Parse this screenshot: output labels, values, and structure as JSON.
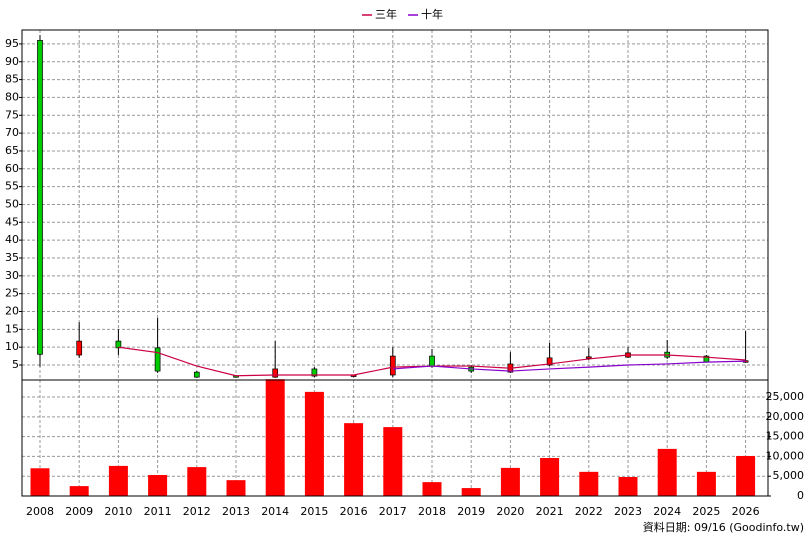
{
  "chart_data": [
    {
      "type": "candlestick",
      "legend": "top",
      "up_color": "#ff0000",
      "down_color": "#00cc00",
      "open": [
        96,
        7.8,
        11.7,
        9.8,
        3,
        2,
        1.6,
        3.9,
        1.9,
        2.2,
        7.5,
        4.4,
        3,
        5,
        7,
        7.2,
        8.6,
        7.5,
        5.8
      ],
      "high": [
        97.5,
        17,
        15,
        18.2,
        3.3,
        2.2,
        11.7,
        4.4,
        2.2,
        10,
        9.5,
        5,
        8.6,
        11.2,
        9.8,
        10,
        12,
        7.8,
        14.5
      ],
      "low": [
        4.5,
        7,
        7.8,
        2.8,
        1.4,
        1.7,
        1.4,
        1.6,
        1.6,
        1.6,
        4.2,
        2.8,
        2.8,
        4.7,
        6.4,
        7,
        6.7,
        5.8,
        5.6
      ],
      "close": [
        8,
        11.7,
        9.8,
        3.3,
        1.6,
        1.9,
        3.9,
        1.9,
        2.2,
        7.5,
        4.7,
        3.3,
        5.3,
        7,
        7.3,
        8.4,
        7.2,
        5.8,
        6.2
      ],
      "series": [
        {
          "name": "三年",
          "color": "#cc0044",
          "values": [
            null,
            null,
            10,
            8.5,
            4.7,
            2,
            2.2,
            2.2,
            2.2,
            4.4,
            4.7,
            4.7,
            4.1,
            5.3,
            6.7,
            7.8,
            7.8,
            7.2,
            6.4
          ]
        },
        {
          "name": "十年",
          "color": "#8800cc",
          "values": [
            null,
            null,
            null,
            null,
            null,
            null,
            null,
            null,
            null,
            3.9,
            4.7,
            3.9,
            3.3,
            3.9,
            4.4,
            5,
            5.3,
            5.8,
            6.1
          ]
        }
      ],
      "ylim": [
        0.8,
        98.9
      ],
      "yticks": [
        5,
        10,
        15,
        20,
        25,
        30,
        35,
        40,
        45,
        50,
        55,
        60,
        65,
        70,
        75,
        80,
        85,
        90,
        95
      ],
      "grid": true
    },
    {
      "type": "bar",
      "color": "#ff0000",
      "categories": [
        "2008",
        "2009",
        "2010",
        "2011",
        "2012",
        "2013",
        "2014",
        "2015",
        "2016",
        "2017",
        "2018",
        "2019",
        "2020",
        "2021",
        "2022",
        "2023",
        "2024",
        "2025",
        "2026"
      ],
      "values": [
        7000,
        2500,
        7600,
        5300,
        7300,
        4000,
        29500,
        26300,
        18400,
        17400,
        3500,
        2000,
        7100,
        9600,
        6100,
        4800,
        11900,
        6100,
        10100
      ],
      "ylim": [
        0,
        29300
      ],
      "yticks": [
        0,
        {
          "value": 5000,
          "label": "5,000"
        },
        {
          "value": 10000,
          "label": "10,000"
        },
        {
          "value": 15000,
          "label": "15,000"
        },
        {
          "value": 20000,
          "label": "20,000"
        },
        {
          "value": 25000,
          "label": "25,000"
        }
      ],
      "grid": true,
      "note": "資料日期: 09/16 (Goodinfo.tw)"
    }
  ]
}
